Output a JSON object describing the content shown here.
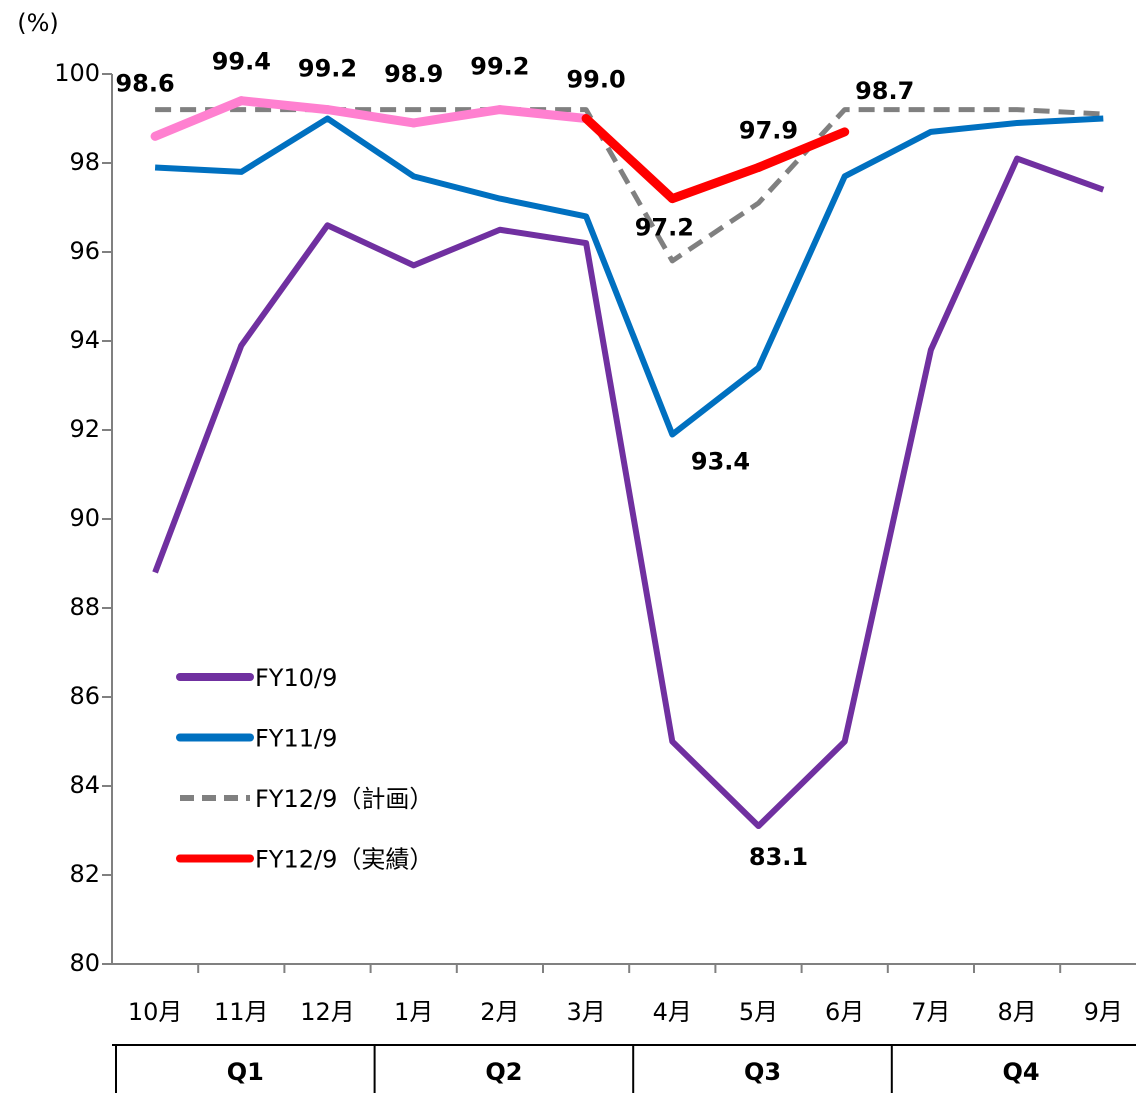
{
  "chart_data": {
    "type": "line",
    "y_label": "(%)",
    "categories": [
      "10月",
      "11月",
      "12月",
      "1月",
      "2月",
      "3月",
      "4月",
      "5月",
      "6月",
      "7月",
      "8月",
      "9月"
    ],
    "quarters": [
      "Q1",
      "Q2",
      "Q3",
      "Q4"
    ],
    "ylim": [
      80,
      100
    ],
    "yticks": [
      80,
      82,
      84,
      86,
      88,
      90,
      92,
      94,
      96,
      98,
      100
    ],
    "grid": false,
    "legend": "lower left",
    "series": [
      {
        "name": "FY10/9",
        "color": "#7030a0",
        "values": [
          88.8,
          93.9,
          96.6,
          95.7,
          96.5,
          96.2,
          85.0,
          83.1,
          85.0,
          93.8,
          98.1,
          97.4
        ],
        "value_labels": [
          null,
          null,
          null,
          null,
          null,
          null,
          null,
          "83.1",
          null,
          null,
          null,
          null
        ]
      },
      {
        "name": "FY11/9",
        "color": "#0070c0",
        "values": [
          97.9,
          97.8,
          99.0,
          97.7,
          97.2,
          96.8,
          91.9,
          93.4,
          97.7,
          98.7,
          98.9,
          99.0
        ],
        "value_labels": [
          null,
          null,
          null,
          null,
          null,
          null,
          null,
          "93.4",
          null,
          null,
          null,
          null
        ]
      },
      {
        "name": "FY12/9（計画）",
        "color": "#808080",
        "dashed": true,
        "values": [
          99.2,
          99.2,
          99.2,
          99.2,
          99.2,
          99.2,
          95.8,
          97.1,
          99.2,
          99.2,
          99.2,
          99.1
        ]
      },
      {
        "name": "FY12/9（実績）",
        "color": "#ff0000",
        "values": [
          98.6,
          99.4,
          99.2,
          98.9,
          99.2,
          99.0,
          97.2,
          97.9,
          98.7,
          null,
          null,
          null
        ],
        "point_colors": [
          "#ff80d0",
          "#ff80d0",
          "#ff80d0",
          "#ff80d0",
          "#ff80d0",
          "#ff80d0",
          "#ff0000",
          "#ff0000",
          "#ff0000",
          "#ff0000",
          "#ff0000",
          "#ff0000"
        ],
        "value_labels": [
          "98.6",
          "99.4",
          "99.2",
          "98.9",
          "99.2",
          "99.0",
          "97.2",
          "97.9",
          "98.7",
          null,
          null,
          null
        ]
      }
    ]
  }
}
